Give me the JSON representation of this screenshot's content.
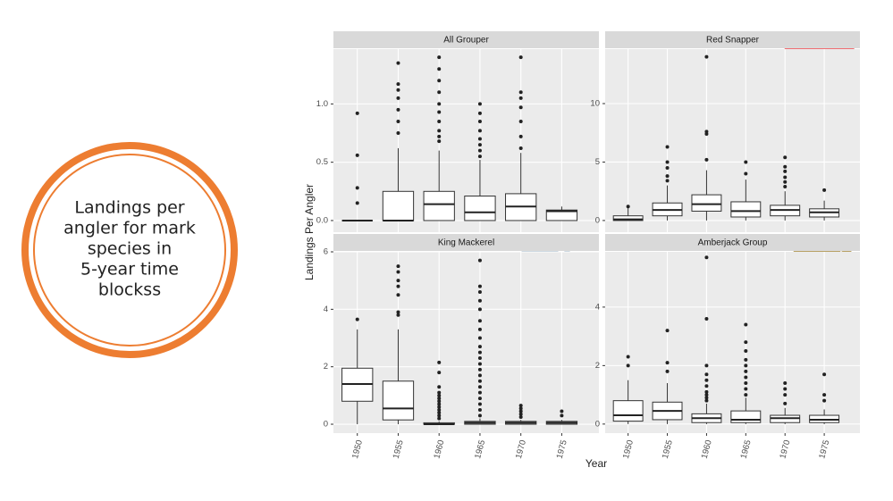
{
  "callout": {
    "lines": [
      "Landings per",
      "angler for mark",
      "species  in",
      "5-year time",
      "blockss"
    ]
  },
  "axes": {
    "xlabel": "Year",
    "ylabel": "Landings Per Angler"
  },
  "chart_data": [
    {
      "type": "box",
      "title": "All Grouper",
      "grid": true,
      "ylim": [
        -0.1,
        1.47
      ],
      "yticks": [
        {
          "value": 0,
          "label": "0.0"
        },
        {
          "value": 0.5,
          "label": "0.5"
        },
        {
          "value": 1,
          "label": "1.0"
        }
      ],
      "boxes": [
        {
          "low": 0,
          "q1": 0,
          "median": 0,
          "q3": 0,
          "high": 0,
          "outliers": [
            0.15,
            0.28,
            0.56,
            0.92
          ]
        },
        {
          "low": 0,
          "q1": 0,
          "median": 0,
          "q3": 0.25,
          "high": 0.62,
          "outliers": [
            0.75,
            0.85,
            0.95,
            1.05,
            1.12,
            1.17,
            1.35
          ]
        },
        {
          "low": 0,
          "q1": 0,
          "median": 0.14,
          "q3": 0.25,
          "high": 0.6,
          "outliers": [
            0.68,
            0.72,
            0.77,
            0.85,
            0.93,
            1.0,
            1.1,
            1.2,
            1.3,
            1.4
          ]
        },
        {
          "low": 0,
          "q1": 0,
          "median": 0.07,
          "q3": 0.21,
          "high": 0.52,
          "outliers": [
            0.55,
            0.6,
            0.65,
            0.7,
            0.77,
            0.85,
            0.92,
            1.0
          ]
        },
        {
          "low": 0,
          "q1": 0,
          "median": 0.12,
          "q3": 0.23,
          "high": 0.58,
          "outliers": [
            0.62,
            0.72,
            0.85,
            0.97,
            1.05,
            1.1,
            1.4
          ]
        },
        {
          "low": 0,
          "q1": 0,
          "median": 0.08,
          "q3": 0.09,
          "high": 0.12,
          "outliers": []
        }
      ]
    },
    {
      "type": "box",
      "title": "Red Snapper",
      "grid": true,
      "ylim": [
        -1,
        14.66
      ],
      "yticks": [
        0,
        5,
        10
      ],
      "boxes": [
        {
          "low": 0,
          "q1": 0,
          "median": 0.1,
          "q3": 0.4,
          "high": 1.1,
          "outliers": [
            1.2
          ]
        },
        {
          "low": 0,
          "q1": 0.4,
          "median": 0.9,
          "q3": 1.5,
          "high": 3.0,
          "outliers": [
            3.4,
            3.8,
            4.5,
            5.0,
            6.3
          ]
        },
        {
          "low": 0,
          "q1": 0.8,
          "median": 1.4,
          "q3": 2.2,
          "high": 4.3,
          "outliers": [
            5.2,
            7.4,
            7.6,
            14.0
          ]
        },
        {
          "low": 0,
          "q1": 0.3,
          "median": 0.8,
          "q3": 1.6,
          "high": 3.5,
          "outliers": [
            4.0,
            5.0
          ]
        },
        {
          "low": 0,
          "q1": 0.4,
          "median": 0.9,
          "q3": 1.3,
          "high": 2.5,
          "outliers": [
            2.9,
            3.3,
            3.7,
            4.2,
            4.6,
            5.4
          ]
        },
        {
          "low": 0,
          "q1": 0.3,
          "median": 0.7,
          "q3": 1.0,
          "high": 1.7,
          "outliers": [
            2.6
          ]
        }
      ]
    },
    {
      "type": "box",
      "title": "King Mackerel",
      "grid": true,
      "categories": [
        "1950",
        "1955",
        "1960",
        "1965",
        "1970",
        "1975"
      ],
      "ylim": [
        -0.31,
        6.0
      ],
      "yticks": [
        0,
        2,
        4,
        6
      ],
      "boxes": [
        {
          "low": 0,
          "q1": 0.8,
          "median": 1.4,
          "q3": 1.95,
          "high": 3.3,
          "outliers": [
            3.65
          ]
        },
        {
          "low": 0,
          "q1": 0.15,
          "median": 0.55,
          "q3": 1.5,
          "high": 3.3,
          "outliers": [
            3.8,
            3.9,
            4.5,
            4.8,
            5.0,
            5.3,
            5.5
          ]
        },
        {
          "low": 0,
          "q1": 0,
          "median": 0,
          "q3": 0.05,
          "high": 0.1,
          "outliers": [
            0.2,
            0.3,
            0.4,
            0.5,
            0.6,
            0.7,
            0.8,
            0.9,
            1.0,
            1.1,
            1.3,
            1.8,
            2.15
          ]
        },
        {
          "low": 0,
          "q1": 0,
          "median": 0.05,
          "q3": 0.1,
          "high": 0.2,
          "outliers": [
            0.3,
            0.5,
            0.7,
            0.9,
            1.1,
            1.3,
            1.5,
            1.7,
            1.9,
            2.1,
            2.3,
            2.5,
            2.7,
            3.0,
            3.3,
            3.6,
            4.0,
            4.3,
            4.6,
            4.8,
            5.7
          ]
        },
        {
          "low": 0,
          "q1": 0,
          "median": 0.05,
          "q3": 0.1,
          "high": 0.15,
          "outliers": [
            0.25,
            0.35,
            0.45,
            0.55,
            0.65
          ]
        },
        {
          "low": 0,
          "q1": 0,
          "median": 0.05,
          "q3": 0.1,
          "high": 0.15,
          "outliers": [
            0.3,
            0.45
          ]
        }
      ]
    },
    {
      "type": "box",
      "title": "Amberjack Group",
      "grid": true,
      "categories": [
        "1950",
        "1955",
        "1960",
        "1965",
        "1970",
        "1975"
      ],
      "ylim": [
        -0.31,
        5.89
      ],
      "yticks": [
        0,
        2,
        4
      ],
      "boxes": [
        {
          "low": 0,
          "q1": 0.1,
          "median": 0.3,
          "q3": 0.8,
          "high": 1.5,
          "outliers": [
            2.0,
            2.3
          ]
        },
        {
          "low": 0,
          "q1": 0.15,
          "median": 0.45,
          "q3": 0.75,
          "high": 1.4,
          "outliers": [
            1.8,
            2.1,
            3.2
          ]
        },
        {
          "low": 0,
          "q1": 0.05,
          "median": 0.2,
          "q3": 0.35,
          "high": 0.7,
          "outliers": [
            0.8,
            0.9,
            1.0,
            1.1,
            1.3,
            1.5,
            1.7,
            2.0,
            3.6,
            5.7
          ]
        },
        {
          "low": 0,
          "q1": 0.05,
          "median": 0.15,
          "q3": 0.45,
          "high": 0.9,
          "outliers": [
            1.0,
            1.2,
            1.4,
            1.6,
            1.8,
            2.0,
            2.2,
            2.5,
            2.8,
            3.4
          ]
        },
        {
          "low": 0,
          "q1": 0.05,
          "median": 0.2,
          "q3": 0.3,
          "high": 0.55,
          "outliers": [
            0.7,
            1.0,
            1.2,
            1.4
          ]
        },
        {
          "low": 0,
          "q1": 0.05,
          "median": 0.15,
          "q3": 0.3,
          "high": 0.5,
          "outliers": [
            0.8,
            1.0,
            1.7
          ]
        }
      ]
    }
  ]
}
